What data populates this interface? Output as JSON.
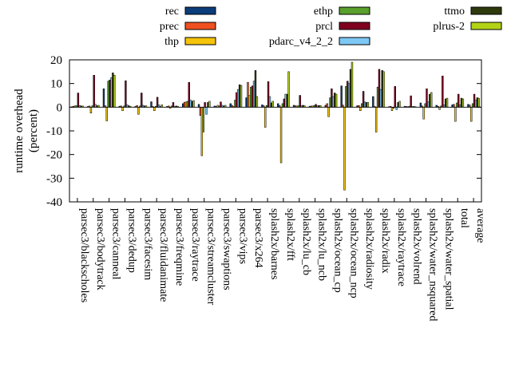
{
  "chart_data": {
    "type": "bar",
    "ylabel_lines": [
      "runtime overhead",
      "(percent)"
    ],
    "xlabel": "",
    "ylim": [
      -40,
      20
    ],
    "yticks": [
      -40,
      -30,
      -20,
      -10,
      0,
      10,
      20
    ],
    "grid": false,
    "legend_position": "top",
    "categories": [
      "parsec3/blackscholes",
      "parsec3/bodytrack",
      "parsec3/canneal",
      "parsec3/dedup",
      "parsec3/facesim",
      "parsec3/fluidanimate",
      "parsec3/freqmine",
      "parsec3/raytrace",
      "parsec3/streamcluster",
      "parsec3/swaptions",
      "parsec3/vips",
      "parsec3/x264",
      "splash2x/barnes",
      "splash2x/fft",
      "splash2x/lu_cb",
      "splash2x/lu_ncb",
      "splash2x/ocean_cp",
      "splash2x/ocean_ncp",
      "splash2x/radiosity",
      "splash2x/radix",
      "splash2x/raytrace",
      "splash2x/volrend",
      "splash2x/water_nsquared",
      "splash2x/water_spatial",
      "total",
      "average"
    ],
    "series": [
      {
        "name": "rec",
        "color": "#0a3d7a",
        "values": [
          0.2,
          0.3,
          7.8,
          0.4,
          0.3,
          2.3,
          0.3,
          1.5,
          1.2,
          0.5,
          1.5,
          4.0,
          1.0,
          1.5,
          0.8,
          0.4,
          0.8,
          9.0,
          0.6,
          4.5,
          0.2,
          0.4,
          1.8,
          0.8,
          1.0,
          1.2
        ]
      },
      {
        "name": "prec",
        "color": "#f05020",
        "values": [
          0.4,
          0.5,
          0.6,
          0.5,
          0.7,
          0.3,
          0.5,
          2.1,
          -3.5,
          0.3,
          0.8,
          10.5,
          0.6,
          0.7,
          0.6,
          0.5,
          1.5,
          0.9,
          0.7,
          0.3,
          0.4,
          0.3,
          0.5,
          0.4,
          1.2,
          0.9
        ]
      },
      {
        "name": "thp",
        "color": "#f5c40a",
        "values": [
          0.6,
          -2.5,
          -5.8,
          -1.5,
          -3.0,
          -1.5,
          -0.5,
          2.2,
          -20.5,
          0.8,
          0.3,
          5.0,
          -8.5,
          -23.5,
          0.5,
          0.5,
          -4.0,
          -35.0,
          -1.5,
          -10.5,
          -1.5,
          0.2,
          -5.0,
          -1.0,
          -6.0,
          -6.0
        ]
      },
      {
        "name": "ethp",
        "color": "#5aa02c",
        "values": [
          0.6,
          0.6,
          11.0,
          0.5,
          0.5,
          0.4,
          0.5,
          2.5,
          -10.5,
          0.5,
          3.0,
          8.5,
          0.7,
          1.5,
          0.6,
          0.7,
          4.0,
          8.8,
          1.5,
          8.5,
          -0.5,
          0.4,
          1.5,
          0.5,
          1.8,
          1.5
        ]
      },
      {
        "name": "prcl",
        "color": "#800020",
        "values": [
          6.0,
          13.5,
          11.5,
          11.2,
          6.0,
          4.2,
          2.0,
          10.5,
          2.0,
          2.2,
          6.2,
          9.0,
          10.8,
          3.5,
          5.0,
          1.2,
          7.8,
          11.0,
          6.7,
          16.0,
          8.8,
          4.8,
          7.8,
          13.2,
          5.5,
          5.5
        ]
      },
      {
        "name": "pdarc_v4_2_2",
        "color": "#7ec8f5",
        "values": [
          0.7,
          1.2,
          12.5,
          1.0,
          0.8,
          1.0,
          0.3,
          3.0,
          -3.0,
          0.8,
          7.5,
          11.0,
          4.5,
          5.5,
          0.6,
          0.6,
          4.5,
          10.0,
          2.2,
          7.5,
          -1.0,
          0.3,
          2.2,
          1.0,
          1.0,
          3.0
        ]
      },
      {
        "name": "ttmo",
        "color": "#2e3a0c",
        "values": [
          0.5,
          0.6,
          14.5,
          0.6,
          0.5,
          0.3,
          0.5,
          2.5,
          2.0,
          0.5,
          9.5,
          15.5,
          1.8,
          5.5,
          0.8,
          0.7,
          6.0,
          16.0,
          2.0,
          15.5,
          2.0,
          0.3,
          5.5,
          3.5,
          3.8,
          4.0
        ]
      },
      {
        "name": "plrus-2",
        "color": "#b2d315",
        "values": [
          0.5,
          0.8,
          13.5,
          0.4,
          0.6,
          1.0,
          0.4,
          2.8,
          2.5,
          0.8,
          9.2,
          4.5,
          2.5,
          15.0,
          0.6,
          0.7,
          5.5,
          19.0,
          2.0,
          15.0,
          2.5,
          0.2,
          6.2,
          3.8,
          3.5,
          3.8
        ]
      }
    ]
  }
}
